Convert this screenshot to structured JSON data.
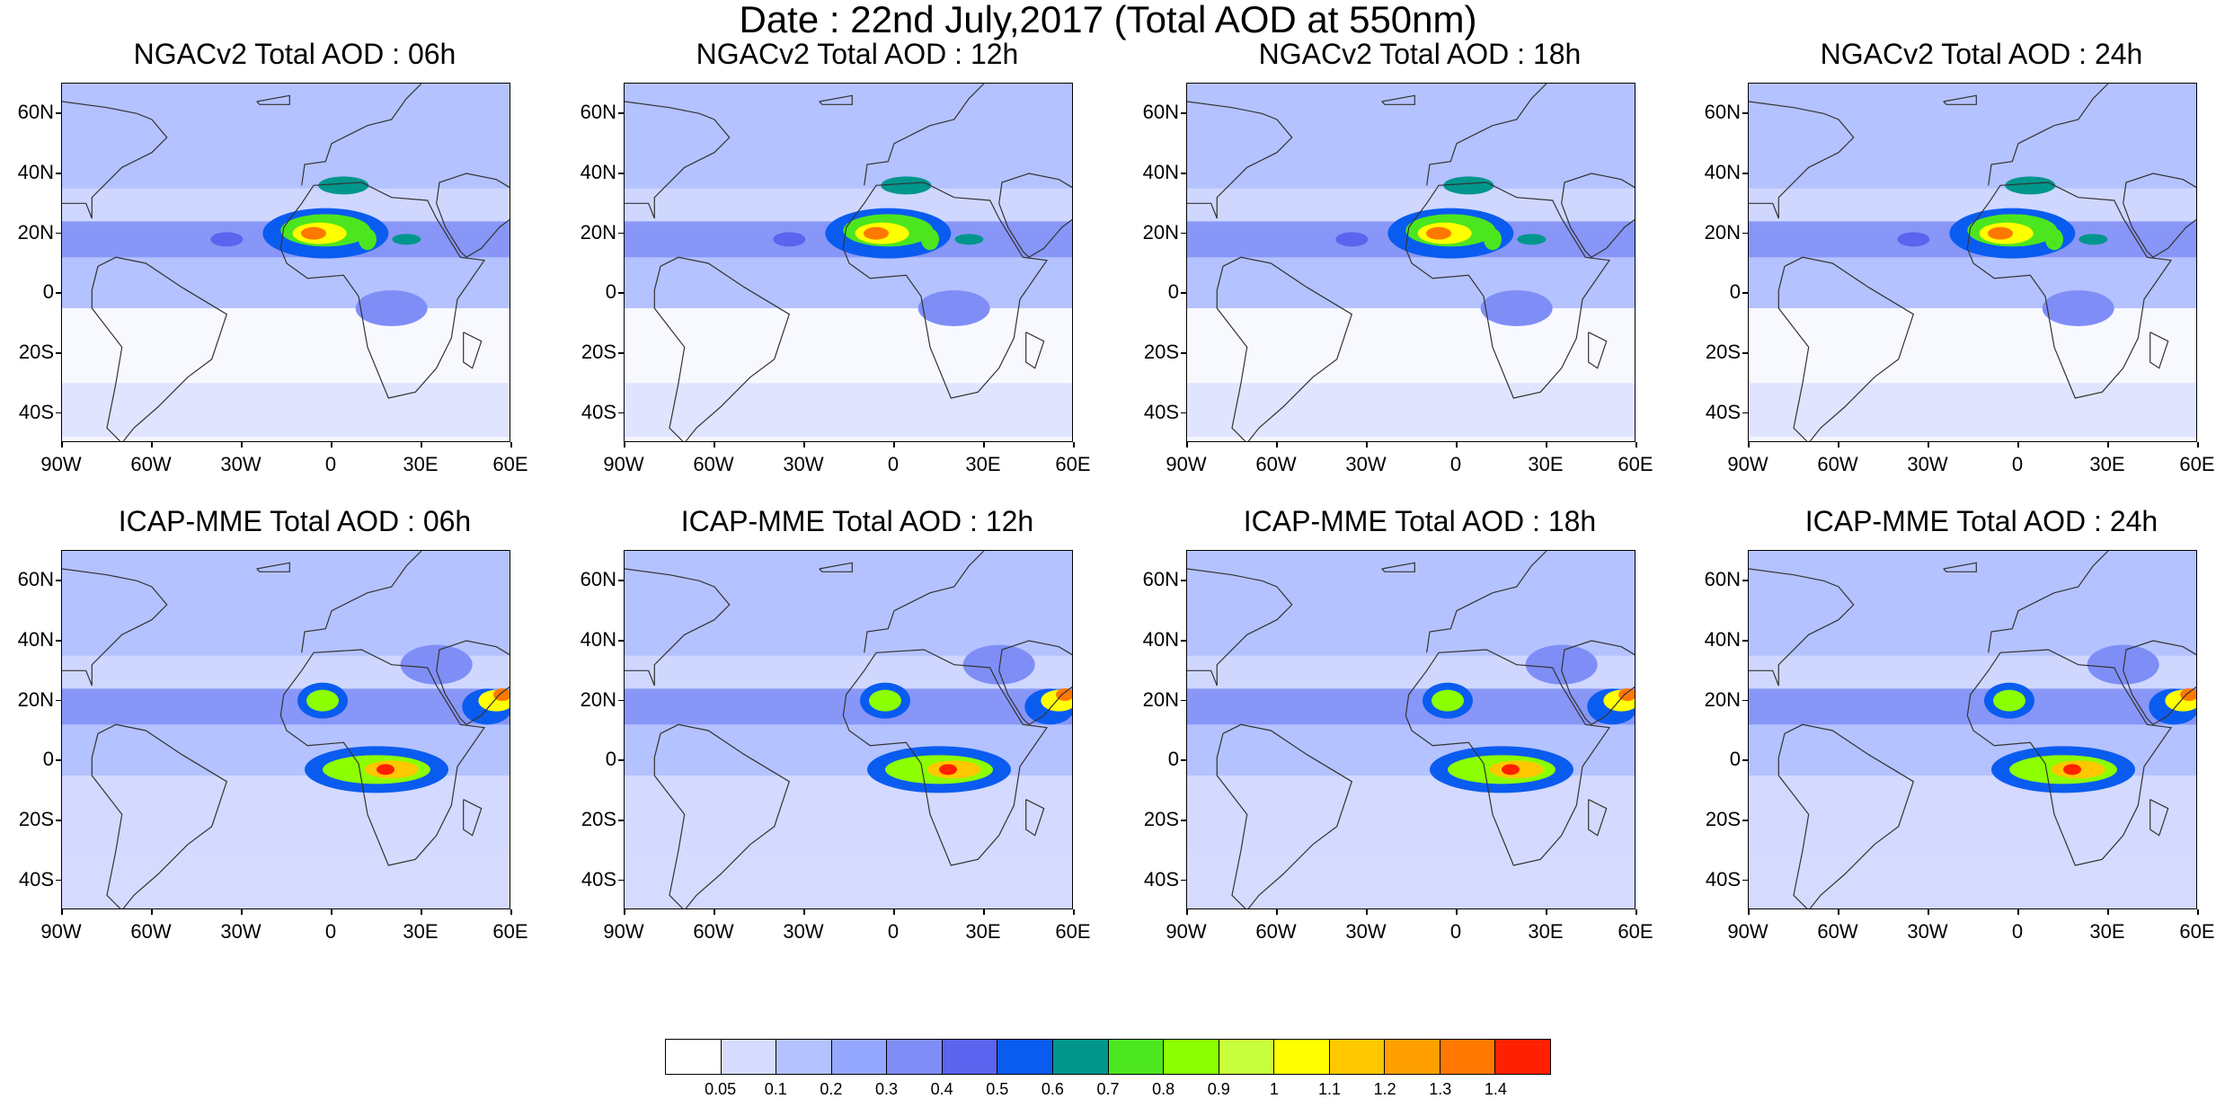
{
  "title": "Date : 22nd July,2017 (Total AOD at 550nm)",
  "lat_labels": [
    "60N",
    "40N",
    "20N",
    "0",
    "20S",
    "40S"
  ],
  "lon_labels": [
    "90W",
    "60W",
    "30W",
    "0",
    "30E",
    "60E"
  ],
  "panels": [
    {
      "title": "NGACv2 Total AOD : 06h",
      "model": "NGACv2",
      "lead": "06h"
    },
    {
      "title": "NGACv2 Total AOD : 12h",
      "model": "NGACv2",
      "lead": "12h"
    },
    {
      "title": "NGACv2 Total AOD : 18h",
      "model": "NGACv2",
      "lead": "18h"
    },
    {
      "title": "NGACv2 Total AOD : 24h",
      "model": "NGACv2",
      "lead": "24h"
    },
    {
      "title": "ICAP-MME Total AOD : 06h",
      "model": "ICAP-MME",
      "lead": "06h"
    },
    {
      "title": "ICAP-MME Total AOD : 12h",
      "model": "ICAP-MME",
      "lead": "12h"
    },
    {
      "title": "ICAP-MME Total AOD : 18h",
      "model": "ICAP-MME",
      "lead": "18h"
    },
    {
      "title": "ICAP-MME Total AOD : 24h",
      "model": "ICAP-MME",
      "lead": "24h"
    }
  ],
  "colorbar": {
    "colors": [
      "#ffffff",
      "#d6dcff",
      "#b4c2ff",
      "#94a8ff",
      "#7f8ef6",
      "#5a64ee",
      "#0a5cf0",
      "#00968c",
      "#4ce61e",
      "#8cff00",
      "#c8ff3c",
      "#ffff00",
      "#ffc800",
      "#ffa000",
      "#ff7800",
      "#ff2000"
    ],
    "labels": [
      "0.05",
      "0.1",
      "0.2",
      "0.3",
      "0.4",
      "0.5",
      "0.6",
      "0.7",
      "0.8",
      "0.9",
      "1",
      "1.1",
      "1.2",
      "1.3",
      "1.4"
    ]
  }
}
